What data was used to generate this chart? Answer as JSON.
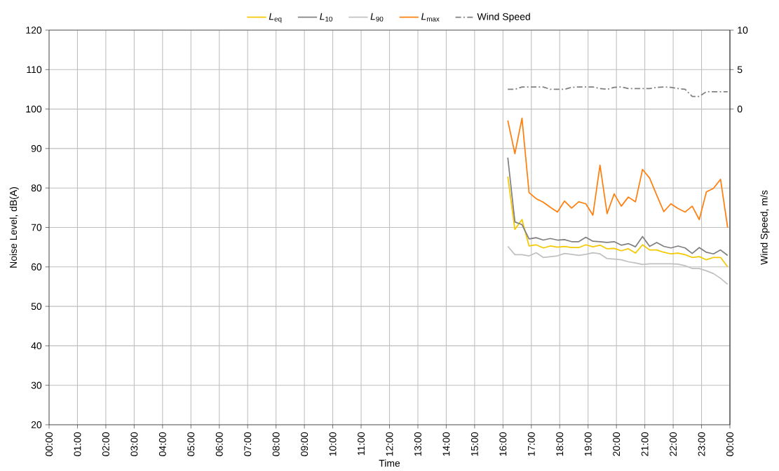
{
  "chart_data": {
    "type": "line",
    "xlabel": "Time",
    "ylabel": "Noise Level, dB(A)",
    "y2label": "Wind Speed, m/s",
    "x": [
      16.17,
      16.42,
      16.67,
      16.92,
      17.17,
      17.42,
      17.67,
      17.92,
      18.17,
      18.42,
      18.67,
      18.92,
      19.17,
      19.42,
      19.67,
      19.92,
      20.17,
      20.42,
      20.67,
      20.92,
      21.17,
      21.42,
      21.67,
      21.92,
      22.17,
      22.42,
      22.67,
      22.92,
      23.17,
      23.42,
      23.67,
      23.92
    ],
    "series": [
      {
        "name": "*L*$_{eq}$",
        "color": "#f5c800",
        "values": [
          82.9,
          69.5,
          72.0,
          65.3,
          65.6,
          64.8,
          65.3,
          65.0,
          65.2,
          64.9,
          64.9,
          65.6,
          65.1,
          65.5,
          64.6,
          64.7,
          64.1,
          64.6,
          63.5,
          65.6,
          64.3,
          64.3,
          63.7,
          63.3,
          63.5,
          63.1,
          62.4,
          62.6,
          61.8,
          62.4,
          62.4,
          60.0
        ]
      },
      {
        "name": "*L*$_{10}$",
        "color": "#808080",
        "values": [
          87.7,
          71.4,
          70.7,
          67.1,
          67.4,
          66.8,
          67.2,
          66.8,
          66.9,
          66.4,
          66.4,
          67.5,
          66.5,
          66.4,
          66.2,
          66.4,
          65.5,
          65.9,
          65.1,
          67.7,
          65.2,
          66.2,
          65.2,
          64.8,
          65.3,
          64.8,
          63.4,
          64.9,
          63.7,
          63.3,
          64.3,
          62.9
        ]
      },
      {
        "name": "*L*$_{90}$",
        "color": "#c0c0c0",
        "values": [
          65.2,
          63.1,
          63.1,
          62.8,
          63.6,
          62.4,
          62.6,
          62.8,
          63.4,
          63.2,
          62.9,
          63.2,
          63.6,
          63.3,
          62.1,
          62.0,
          61.8,
          61.3,
          61.0,
          60.6,
          60.8,
          60.8,
          60.8,
          60.8,
          60.7,
          60.3,
          59.6,
          59.6,
          59.0,
          58.3,
          57.1,
          55.6
        ]
      },
      {
        "name": "*L*$_{max}$",
        "color": "#ff7f0e",
        "values": [
          97.1,
          88.7,
          97.7,
          78.8,
          77.3,
          76.4,
          75.1,
          73.9,
          76.7,
          74.9,
          76.5,
          76.0,
          73.1,
          85.8,
          73.5,
          78.5,
          75.4,
          77.7,
          76.5,
          84.7,
          82.5,
          78.2,
          74.0,
          76.0,
          74.8,
          73.9,
          75.4,
          72.0,
          79.0,
          79.9,
          82.2,
          70.0
        ]
      },
      {
        "name": "Wind Speed",
        "color": "#808080",
        "axis": "y2",
        "line_style": "dashed",
        "values": [
          2.5,
          2.5,
          2.8,
          2.8,
          2.8,
          2.8,
          2.5,
          2.5,
          2.5,
          2.75,
          2.8,
          2.8,
          2.8,
          2.6,
          2.5,
          2.75,
          2.8,
          2.6,
          2.6,
          2.6,
          2.6,
          2.75,
          2.8,
          2.75,
          2.6,
          2.5,
          1.6,
          1.6,
          2.2,
          2.2,
          2.2,
          2.2
        ]
      }
    ],
    "xlim": [
      0,
      24
    ],
    "ylim": [
      20,
      120
    ],
    "y2lim": [
      -40,
      10
    ],
    "xticks": [
      {
        "value": 0,
        "label": "00:00"
      },
      {
        "value": 1,
        "label": "01:00"
      },
      {
        "value": 2,
        "label": "02:00"
      },
      {
        "value": 3,
        "label": "03:00"
      },
      {
        "value": 4,
        "label": "04:00"
      },
      {
        "value": 5,
        "label": "05:00"
      },
      {
        "value": 6,
        "label": "06:00"
      },
      {
        "value": 7,
        "label": "07:00"
      },
      {
        "value": 8,
        "label": "08:00"
      },
      {
        "value": 9,
        "label": "09:00"
      },
      {
        "value": 10,
        "label": "10:00"
      },
      {
        "value": 11,
        "label": "11:00"
      },
      {
        "value": 12,
        "label": "12:00"
      },
      {
        "value": 13,
        "label": "13:00"
      },
      {
        "value": 14,
        "label": "14:00"
      },
      {
        "value": 15,
        "label": "15:00"
      },
      {
        "value": 16,
        "label": "16:00"
      },
      {
        "value": 17,
        "label": "17:00"
      },
      {
        "value": 18,
        "label": "18:00"
      },
      {
        "value": 19,
        "label": "19:00"
      },
      {
        "value": 20,
        "label": "20:00"
      },
      {
        "value": 21,
        "label": "21:00"
      },
      {
        "value": 22,
        "label": "22:00"
      },
      {
        "value": 23,
        "label": "23:00"
      },
      {
        "value": 24,
        "label": "00:00"
      }
    ],
    "yticks": [
      20,
      30,
      40,
      50,
      60,
      70,
      80,
      90,
      100,
      110,
      120
    ],
    "y2ticks": [
      0,
      5,
      10
    ],
    "grid": true,
    "legend": "top"
  }
}
